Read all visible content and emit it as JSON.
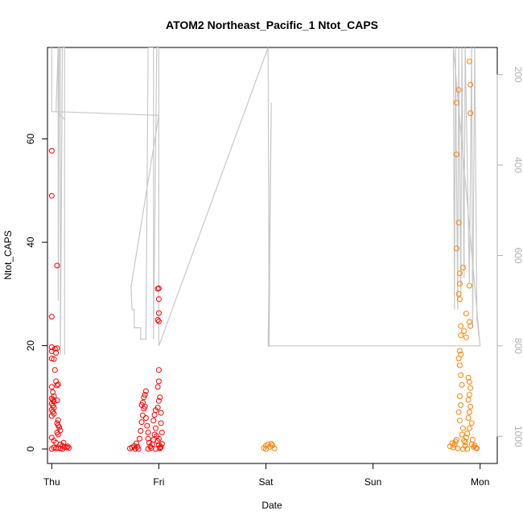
{
  "chart_data": {
    "type": "scatter",
    "title": "ATOM2 Northeast_Pacific_1 Ntot_CAPS",
    "xlabel": "Date",
    "ylabel": "Ntot_CAPS",
    "x_ticks": [
      "Thu",
      "Fri",
      "Sat",
      "Sun",
      "Mon"
    ],
    "xlim": [
      -0.04,
      4.16
    ],
    "ylim": [
      -2.8,
      77.7
    ],
    "y_ticks": [
      0,
      20,
      40,
      60
    ],
    "y2_ticks": [
      200,
      400,
      600,
      800,
      1000
    ],
    "y2lim": [
      1060,
      140
    ],
    "colors": {
      "series1": "#ff0000",
      "series2": "#ff8000",
      "altitude": "#c8c8c8",
      "right_axis": "#b0b0b0"
    },
    "series": [
      {
        "color": "#ff0000",
        "points": [
          [
            0.0,
            57.7
          ],
          [
            0.0,
            49.0
          ],
          [
            0.05,
            35.5
          ],
          [
            0.0,
            25.6
          ],
          [
            0.0,
            19.7
          ],
          [
            0.0,
            18.9
          ],
          [
            0.03,
            19.4
          ],
          [
            0.05,
            19.5
          ],
          [
            0.04,
            18.6
          ],
          [
            0.0,
            17.5
          ],
          [
            0.02,
            17.4
          ],
          [
            0.03,
            15.3
          ],
          [
            0.04,
            13.1
          ],
          [
            0.05,
            12.3
          ],
          [
            0.06,
            12.5
          ],
          [
            0.0,
            12.0
          ],
          [
            0.01,
            11.0
          ],
          [
            0.02,
            10.2
          ],
          [
            0.0,
            9.8
          ],
          [
            0.01,
            9.5
          ],
          [
            0.02,
            9.2
          ],
          [
            0.0,
            8.8
          ],
          [
            0.01,
            8.4
          ],
          [
            0.02,
            8.0
          ],
          [
            0.0,
            7.6
          ],
          [
            0.01,
            7.2
          ],
          [
            0.02,
            6.8
          ],
          [
            0.0,
            6.4
          ],
          [
            0.05,
            9.4
          ],
          [
            0.06,
            5.6
          ],
          [
            0.05,
            5.0
          ],
          [
            0.06,
            4.6
          ],
          [
            0.07,
            4.2
          ],
          [
            0.08,
            3.6
          ],
          [
            0.05,
            3.2
          ],
          [
            0.06,
            2.8
          ],
          [
            0.0,
            2.2
          ],
          [
            0.02,
            1.6
          ],
          [
            0.04,
            1.2
          ],
          [
            0.08,
            0.9
          ],
          [
            0.1,
            0.6
          ],
          [
            0.12,
            0.4
          ],
          [
            0.14,
            0.3
          ],
          [
            0.16,
            0.2
          ],
          [
            0.02,
            0.3
          ],
          [
            0.04,
            0.1
          ],
          [
            0.06,
            0.2
          ],
          [
            0.0,
            0.0
          ],
          [
            0.08,
            0.1
          ],
          [
            0.1,
            0.0
          ],
          [
            0.15,
            0.5
          ],
          [
            0.11,
            1.2
          ],
          [
            0.73,
            0.1
          ],
          [
            0.75,
            0.3
          ],
          [
            0.77,
            0.6
          ],
          [
            0.79,
            1.1
          ],
          [
            0.8,
            0.4
          ],
          [
            0.82,
            2.0
          ],
          [
            0.83,
            3.5
          ],
          [
            0.84,
            5.2
          ],
          [
            0.85,
            6.5
          ],
          [
            0.86,
            7.8
          ],
          [
            0.84,
            8.5
          ],
          [
            0.85,
            9.0
          ],
          [
            0.86,
            10.0
          ],
          [
            0.87,
            10.5
          ],
          [
            0.88,
            11.2
          ],
          [
            0.87,
            8.2
          ],
          [
            0.88,
            6.0
          ],
          [
            0.89,
            4.5
          ],
          [
            0.9,
            3.2
          ],
          [
            0.9,
            2.0
          ],
          [
            0.91,
            1.2
          ],
          [
            0.92,
            0.5
          ],
          [
            0.93,
            0.2
          ],
          [
            0.94,
            0.9
          ],
          [
            0.95,
            1.8
          ],
          [
            0.96,
            2.8
          ],
          [
            0.97,
            4.0
          ],
          [
            0.95,
            5.5
          ],
          [
            0.96,
            6.6
          ],
          [
            0.97,
            7.5
          ],
          [
            0.98,
            2.5
          ],
          [
            0.99,
            1.5
          ],
          [
            1.0,
            0.8
          ],
          [
            1.01,
            0.3
          ],
          [
            0.78,
            0.0
          ],
          [
            0.81,
            0.0
          ],
          [
            0.9,
            0.0
          ],
          [
            0.97,
            0.0
          ],
          [
            0.99,
            31.0
          ],
          [
            1.0,
            31.1
          ],
          [
            1.0,
            29.0
          ],
          [
            1.0,
            26.3
          ],
          [
            0.99,
            25.0
          ],
          [
            1.0,
            24.7
          ],
          [
            1.0,
            15.3
          ],
          [
            1.0,
            13.1
          ],
          [
            0.99,
            12.0
          ],
          [
            1.01,
            10.0
          ],
          [
            1.0,
            9.3
          ],
          [
            0.99,
            8.0
          ],
          [
            1.02,
            7.0
          ],
          [
            1.02,
            5.0
          ],
          [
            1.03,
            3.2
          ],
          [
            1.0,
            2.0
          ],
          [
            1.03,
            1.0
          ],
          [
            1.02,
            0.4
          ],
          [
            1.01,
            0.1
          ]
        ]
      },
      {
        "color": "#ff8000",
        "points": [
          [
            1.98,
            0.2
          ],
          [
            2.0,
            0.6
          ],
          [
            2.02,
            0.9
          ],
          [
            2.04,
            0.4
          ],
          [
            2.06,
            0.7
          ],
          [
            2.08,
            0.1
          ],
          [
            2.0,
            0.0
          ],
          [
            2.05,
            1.0
          ],
          [
            3.78,
            67.0
          ],
          [
            3.8,
            69.5
          ],
          [
            3.78,
            57.0
          ],
          [
            3.8,
            43.8
          ],
          [
            3.78,
            38.8
          ],
          [
            3.81,
            34.0
          ],
          [
            3.84,
            35.1
          ],
          [
            3.81,
            32.0
          ],
          [
            3.8,
            30.0
          ],
          [
            3.81,
            29.0
          ],
          [
            3.82,
            23.8
          ],
          [
            3.82,
            22.0
          ],
          [
            3.85,
            22.8
          ],
          [
            3.87,
            21.6
          ],
          [
            3.87,
            26.2
          ],
          [
            3.9,
            31.6
          ],
          [
            3.9,
            24.6
          ],
          [
            3.91,
            23.8
          ],
          [
            3.91,
            70.5
          ],
          [
            3.9,
            75.0
          ],
          [
            3.91,
            65.0
          ],
          [
            3.81,
            19.0
          ],
          [
            3.82,
            18.3
          ],
          [
            3.8,
            17.5
          ],
          [
            3.81,
            16.2
          ],
          [
            3.82,
            14.3
          ],
          [
            3.83,
            12.4
          ],
          [
            3.81,
            10.2
          ],
          [
            3.82,
            8.5
          ],
          [
            3.8,
            7.1
          ],
          [
            3.81,
            5.5
          ],
          [
            3.84,
            4.0
          ],
          [
            3.83,
            2.8
          ],
          [
            3.85,
            1.6
          ],
          [
            3.86,
            0.6
          ],
          [
            3.75,
            0.3
          ],
          [
            3.76,
            0.8
          ],
          [
            3.77,
            1.4
          ],
          [
            3.78,
            1.8
          ],
          [
            3.79,
            0.1
          ],
          [
            3.72,
            0.5
          ],
          [
            3.74,
            1.1
          ],
          [
            3.89,
            13.8
          ],
          [
            3.9,
            13.0
          ],
          [
            3.91,
            11.8
          ],
          [
            3.9,
            10.5
          ],
          [
            3.89,
            9.5
          ],
          [
            3.91,
            8.2
          ],
          [
            3.9,
            7.1
          ],
          [
            3.89,
            6.0
          ],
          [
            3.92,
            5.0
          ],
          [
            3.9,
            4.0
          ],
          [
            3.88,
            3.0
          ],
          [
            3.87,
            2.2
          ],
          [
            3.86,
            1.3
          ],
          [
            3.92,
            0.9
          ],
          [
            3.94,
            0.4
          ],
          [
            3.96,
            0.2
          ],
          [
            3.93,
            1.8
          ],
          [
            3.95,
            0.7
          ],
          [
            3.88,
            0.0
          ],
          [
            3.84,
            0.0
          ],
          [
            3.97,
            0.1
          ]
        ]
      }
    ],
    "altitude": [
      [
        0.0,
        140
      ],
      [
        0.0,
        282
      ],
      [
        0.04,
        282
      ],
      [
        0.06,
        140
      ],
      [
        0.06,
        700
      ],
      [
        0.07,
        140
      ],
      [
        0.08,
        140
      ],
      [
        0.08,
        820
      ],
      [
        0.1,
        140
      ],
      [
        0.12,
        140
      ],
      [
        0.12,
        820
      ],
      [
        0.12,
        300
      ],
      [
        0.05,
        282
      ],
      [
        1.0,
        290
      ],
      [
        0.74,
        670
      ],
      [
        0.75,
        720
      ],
      [
        0.77,
        720
      ],
      [
        0.77,
        760
      ],
      [
        0.83,
        760
      ],
      [
        0.83,
        785
      ],
      [
        0.88,
        785
      ],
      [
        0.9,
        140
      ],
      [
        0.95,
        140
      ],
      [
        0.95,
        785
      ],
      [
        0.98,
        140
      ],
      [
        1.0,
        140
      ],
      [
        1.0,
        800
      ],
      [
        2.02,
        140
      ],
      [
        2.03,
        800
      ],
      [
        2.04,
        500
      ],
      [
        2.05,
        262
      ],
      [
        2.02,
        800
      ],
      [
        4.0,
        800
      ],
      [
        3.75,
        140
      ],
      [
        3.76,
        720
      ],
      [
        3.77,
        140
      ],
      [
        3.79,
        720
      ],
      [
        3.8,
        140
      ],
      [
        3.82,
        690
      ],
      [
        3.83,
        140
      ],
      [
        3.85,
        650
      ],
      [
        3.86,
        140
      ],
      [
        3.9,
        660
      ],
      [
        3.92,
        140
      ],
      [
        3.93,
        760
      ],
      [
        3.95,
        140
      ],
      [
        3.97,
        740
      ],
      [
        4.0,
        800
      ]
    ]
  }
}
